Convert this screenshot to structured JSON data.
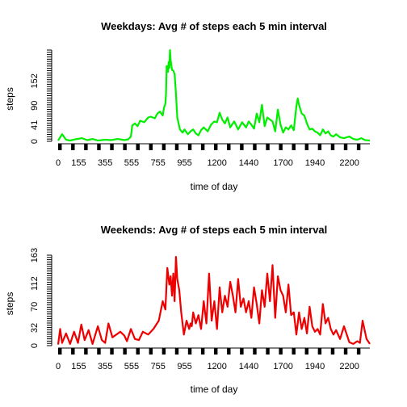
{
  "chart_data": [
    {
      "type": "line",
      "title": "Weekdays: Avg # of steps each 5 min interval",
      "xlabel": "time of day",
      "ylabel": "steps",
      "color": "#00ee00",
      "xlim": [
        0,
        2355
      ],
      "ylim": [
        0,
        230
      ],
      "xtick_labels": [
        "0",
        "155",
        "355",
        "555",
        "755",
        "955",
        "1200",
        "1440",
        "1700",
        "1940",
        "2200"
      ],
      "ytick_labels": [
        "0",
        "41",
        "90",
        "152"
      ],
      "x": [
        0,
        30,
        60,
        90,
        130,
        180,
        220,
        260,
        300,
        355,
        400,
        450,
        500,
        530,
        550,
        560,
        580,
        600,
        620,
        650,
        680,
        700,
        730,
        750,
        770,
        790,
        800,
        810,
        815,
        820,
        830,
        835,
        840,
        845,
        850,
        860,
        870,
        880,
        890,
        900,
        920,
        940,
        955,
        980,
        1000,
        1020,
        1040,
        1060,
        1080,
        1100,
        1130,
        1155,
        1180,
        1200,
        1220,
        1240,
        1260,
        1280,
        1300,
        1330,
        1360,
        1390,
        1420,
        1440,
        1460,
        1480,
        1500,
        1520,
        1540,
        1560,
        1580,
        1600,
        1620,
        1640,
        1660,
        1680,
        1700,
        1720,
        1740,
        1760,
        1780,
        1800,
        1810,
        1820,
        1840,
        1860,
        1880,
        1900,
        1920,
        1940,
        1960,
        1980,
        2000,
        2020,
        2040,
        2060,
        2080,
        2100,
        2130,
        2160,
        2200,
        2230,
        2260,
        2290,
        2320,
        2355
      ],
      "y": [
        2,
        18,
        4,
        2,
        5,
        8,
        3,
        6,
        2,
        4,
        3,
        6,
        3,
        5,
        12,
        40,
        45,
        38,
        52,
        48,
        60,
        62,
        58,
        70,
        75,
        65,
        85,
        95,
        120,
        190,
        175,
        200,
        185,
        230,
        205,
        180,
        178,
        170,
        120,
        60,
        30,
        22,
        30,
        18,
        25,
        30,
        20,
        15,
        28,
        35,
        25,
        42,
        50,
        48,
        72,
        55,
        45,
        60,
        35,
        50,
        30,
        48,
        35,
        50,
        42,
        32,
        70,
        48,
        92,
        38,
        60,
        55,
        50,
        25,
        80,
        42,
        22,
        35,
        30,
        40,
        28,
        88,
        108,
        92,
        70,
        65,
        45,
        30,
        32,
        25,
        22,
        15,
        30,
        20,
        25,
        15,
        12,
        18,
        10,
        8,
        12,
        6,
        4,
        8,
        3,
        2
      ]
    },
    {
      "type": "line",
      "title": "Weekends: Avg # of steps each 5 min interval",
      "xlabel": "time of day",
      "ylabel": "steps",
      "color": "#ee0000",
      "xlim": [
        0,
        2355
      ],
      "ylim": [
        0,
        163
      ],
      "xtick_labels": [
        "0",
        "155",
        "355",
        "555",
        "755",
        "955",
        "1200",
        "1440",
        "1700",
        "1940",
        "2200"
      ],
      "ytick_labels": [
        "0",
        "32",
        "70",
        "112",
        "163"
      ],
      "x": [
        0,
        15,
        30,
        60,
        90,
        120,
        150,
        175,
        200,
        230,
        260,
        300,
        330,
        355,
        380,
        410,
        440,
        470,
        500,
        520,
        550,
        580,
        610,
        640,
        680,
        720,
        760,
        790,
        810,
        825,
        840,
        850,
        860,
        870,
        880,
        890,
        900,
        915,
        930,
        950,
        970,
        990,
        1000,
        1010,
        1020,
        1040,
        1060,
        1080,
        1100,
        1120,
        1140,
        1160,
        1180,
        1200,
        1220,
        1240,
        1260,
        1280,
        1300,
        1320,
        1340,
        1360,
        1380,
        1400,
        1420,
        1440,
        1460,
        1480,
        1500,
        1520,
        1540,
        1560,
        1580,
        1600,
        1620,
        1640,
        1660,
        1680,
        1700,
        1720,
        1740,
        1760,
        1780,
        1800,
        1820,
        1840,
        1860,
        1880,
        1900,
        1920,
        1940,
        1960,
        1980,
        2000,
        2020,
        2040,
        2060,
        2080,
        2100,
        2130,
        2160,
        2200,
        2230,
        2260,
        2280,
        2300,
        2330,
        2355
      ],
      "y": [
        2,
        30,
        5,
        22,
        3,
        25,
        5,
        38,
        10,
        28,
        3,
        35,
        10,
        5,
        40,
        15,
        20,
        25,
        18,
        8,
        30,
        12,
        10,
        25,
        20,
        30,
        45,
        80,
        65,
        140,
        110,
        125,
        90,
        130,
        80,
        160,
        120,
        100,
        60,
        20,
        45,
        30,
        40,
        35,
        60,
        40,
        55,
        30,
        80,
        40,
        130,
        45,
        80,
        30,
        105,
        60,
        90,
        70,
        115,
        90,
        60,
        120,
        70,
        85,
        60,
        80,
        50,
        105,
        75,
        40,
        100,
        70,
        130,
        80,
        145,
        50,
        125,
        100,
        90,
        60,
        110,
        55,
        60,
        20,
        60,
        30,
        50,
        22,
        70,
        35,
        25,
        30,
        20,
        75,
        40,
        50,
        30,
        20,
        28,
        12,
        35,
        6,
        3,
        8,
        5,
        45,
        12,
        3
      ]
    }
  ]
}
